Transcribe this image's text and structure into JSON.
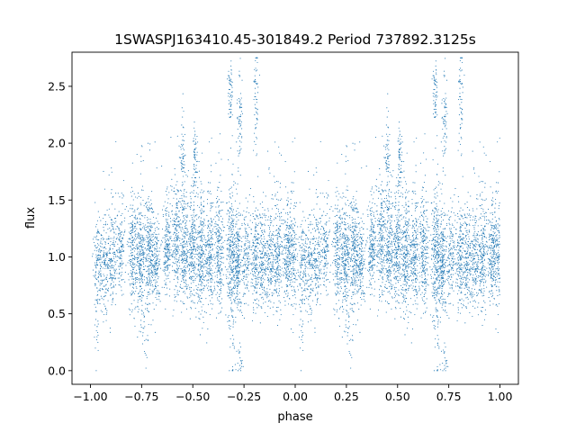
{
  "chart_data": {
    "type": "scatter",
    "title": "1SWASPJ163410.45-301849.2 Period 737892.3125s",
    "xlabel": "phase",
    "ylabel": "flux",
    "xlim": [
      -1.09,
      1.09
    ],
    "ylim": [
      -0.12,
      2.8
    ],
    "xticks": [
      -1.0,
      -0.75,
      -0.5,
      -0.25,
      0.0,
      0.25,
      0.5,
      0.75,
      1.0
    ],
    "xtick_labels": [
      "−1.00",
      "−0.75",
      "−0.50",
      "−0.25",
      "0.00",
      "0.25",
      "0.50",
      "0.75",
      "1.00"
    ],
    "yticks": [
      0.0,
      0.5,
      1.0,
      1.5,
      2.0,
      2.5
    ],
    "ytick_labels": [
      "0.0",
      "0.5",
      "1.0",
      "1.5",
      "2.0",
      "2.5"
    ],
    "grid": false,
    "legend": "none",
    "marker_color": "#1f77b4",
    "phase_clusters": [
      [
        0.036,
        1.0,
        0.22,
        0.55
      ],
      [
        0.072,
        0.9,
        0.22,
        0.55
      ],
      [
        0.108,
        1.0,
        0.22,
        0.6
      ],
      [
        0.15,
        1.05,
        0.2,
        0.5
      ],
      [
        0.205,
        1.02,
        0.25,
        0.8
      ],
      [
        0.245,
        1.0,
        0.25,
        1.0
      ],
      [
        0.285,
        1.05,
        0.25,
        0.9
      ],
      [
        0.32,
        1.0,
        0.2,
        0.7
      ],
      [
        0.375,
        1.1,
        0.2,
        0.8
      ],
      [
        0.42,
        1.15,
        0.25,
        0.8
      ],
      [
        0.458,
        1.1,
        0.25,
        0.9
      ],
      [
        0.5,
        1.05,
        0.25,
        0.9
      ],
      [
        0.54,
        1.0,
        0.25,
        1.0
      ],
      [
        0.583,
        1.0,
        0.25,
        0.9
      ],
      [
        0.63,
        1.05,
        0.25,
        0.9
      ],
      [
        0.685,
        1.0,
        0.3,
        1.0
      ],
      [
        0.718,
        1.0,
        0.25,
        1.0
      ],
      [
        0.76,
        1.02,
        0.2,
        0.6
      ],
      [
        0.805,
        0.98,
        0.22,
        0.7
      ],
      [
        0.84,
        1.0,
        0.22,
        0.7
      ],
      [
        0.878,
        1.0,
        0.22,
        0.7
      ],
      [
        0.918,
        1.0,
        0.22,
        0.8
      ],
      [
        0.962,
        1.0,
        0.22,
        0.8
      ],
      [
        0.99,
        1.0,
        0.25,
        0.6
      ]
    ],
    "high_excursions": [
      [
        0.683,
        2.45,
        0.15
      ],
      [
        0.73,
        2.25,
        0.2
      ],
      [
        0.81,
        2.45,
        0.25
      ],
      [
        0.51,
        1.85,
        0.15
      ],
      [
        0.45,
        1.85,
        0.2
      ]
    ],
    "low_excursions": [
      [
        0.7,
        0.25,
        0.2
      ],
      [
        0.27,
        0.3,
        0.15
      ],
      [
        0.73,
        0.1,
        0.08
      ],
      [
        0.03,
        0.3,
        0.12
      ]
    ]
  }
}
